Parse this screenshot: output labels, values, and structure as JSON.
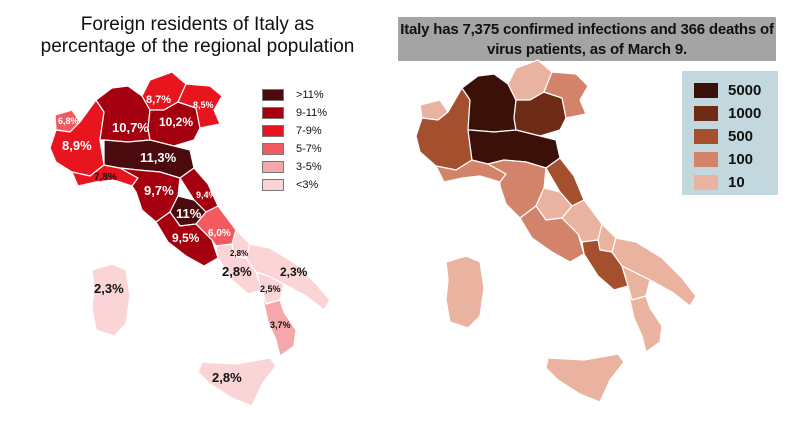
{
  "left": {
    "title_line1": "Foreign residents of Italy as",
    "title_line2": "percentage of the regional population",
    "legend": [
      {
        "label": ">11%",
        "color": "#4b0a0d"
      },
      {
        "label": "9-11%",
        "color": "#a5000f"
      },
      {
        "label": "7-9%",
        "color": "#e8141e"
      },
      {
        "label": "5-7%",
        "color": "#f25a5f"
      },
      {
        "label": "3-5%",
        "color": "#f4a8ab"
      },
      {
        "label": "<3%",
        "color": "#fbd5d6"
      }
    ],
    "region_labels": {
      "valle_aosta": "6,8%",
      "piemonte": "8,9%",
      "lombardia": "10,7%",
      "trentino": "8,7%",
      "friuli": "8,5%",
      "veneto": "10,2%",
      "liguria": "7,8%",
      "emilia": "11,3%",
      "toscana": "9,7%",
      "marche": "9,4%",
      "umbria": "11%",
      "lazio": "9,5%",
      "abruzzo": "6,0%",
      "molise": "2,8%",
      "campania": "2,8%",
      "puglia": "2,3%",
      "basilicata": "2,5%",
      "calabria": "3,7%",
      "sicilia": "2,8%",
      "sardegna": "2,3%"
    }
  },
  "right": {
    "title_line1": "Italy has 7,375 confirmed infections and 366 deaths of",
    "title_line2": "virus patients, as of March 9.",
    "legend": [
      {
        "label": "5000",
        "color": "#3a1008"
      },
      {
        "label": "1000",
        "color": "#6e2c17"
      },
      {
        "label": "500",
        "color": "#a4502f"
      },
      {
        "label": "100",
        "color": "#d3836a"
      },
      {
        "label": "10",
        "color": "#eab3a0"
      }
    ]
  }
}
